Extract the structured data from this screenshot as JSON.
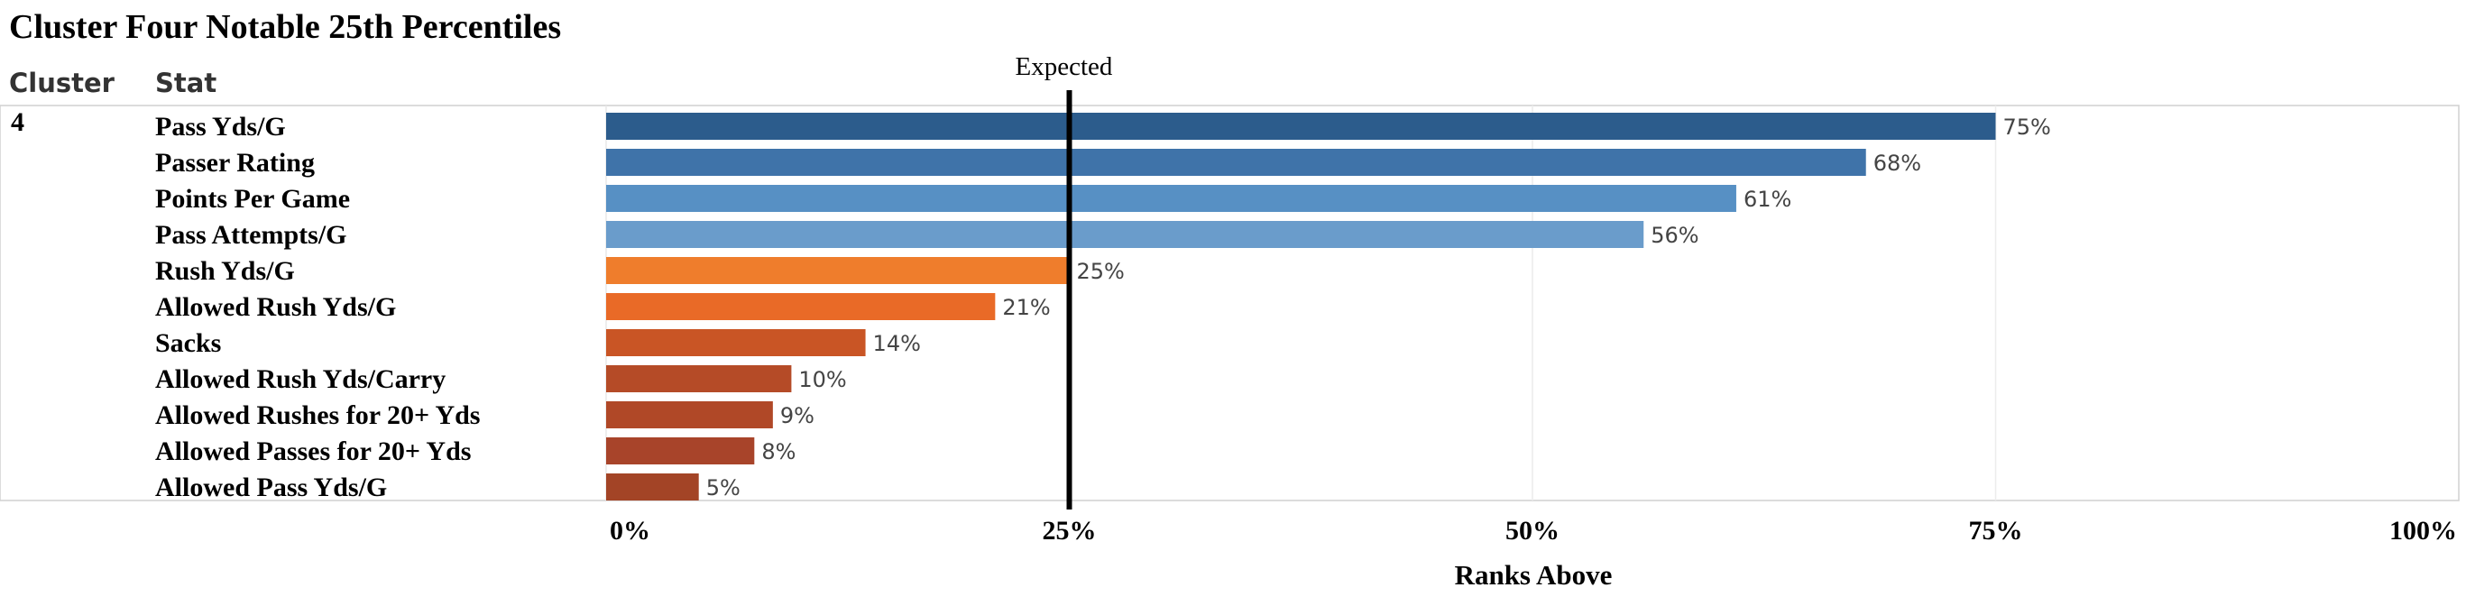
{
  "title": "Cluster Four Notable 25th Percentiles",
  "columns": {
    "cluster": "Cluster",
    "stat": "Stat"
  },
  "cluster_value": "4",
  "reference_line": {
    "label": "Expected",
    "value": 25,
    "color": "#000000"
  },
  "chart_data": {
    "type": "bar",
    "orientation": "horizontal",
    "title": "Cluster Four Notable 25th Percentiles",
    "xlabel": "Ranks Above",
    "ylabel": "Stat",
    "xlim": [
      0,
      100
    ],
    "x_ticks": [
      "0%",
      "25%",
      "50%",
      "75%",
      "100%"
    ],
    "x_tick_values": [
      0,
      25,
      50,
      75,
      100
    ],
    "categories": [
      "Pass Yds/G",
      "Passer Rating",
      "Points Per Game",
      "Pass Attempts/G",
      "Rush Yds/G",
      "Allowed Rush Yds/G",
      "Sacks",
      "Allowed Rush Yds/Carry",
      "Allowed Rushes for 20+ Yds",
      "Allowed Passes for 20+ Yds",
      "Allowed Pass Yds/G"
    ],
    "values": [
      75,
      68,
      61,
      56,
      25,
      21,
      14,
      10,
      9,
      8,
      5
    ],
    "value_labels": [
      "75%",
      "68%",
      "61%",
      "56%",
      "25%",
      "21%",
      "14%",
      "10%",
      "9%",
      "8%",
      "5%"
    ],
    "colors": [
      "#2c5c8c",
      "#3f73a9",
      "#5790c4",
      "#6a9ccb",
      "#ef7d2c",
      "#e96a27",
      "#c95525",
      "#b54b27",
      "#b04827",
      "#a8442a",
      "#a34426"
    ],
    "grid": true,
    "legend": "none"
  }
}
